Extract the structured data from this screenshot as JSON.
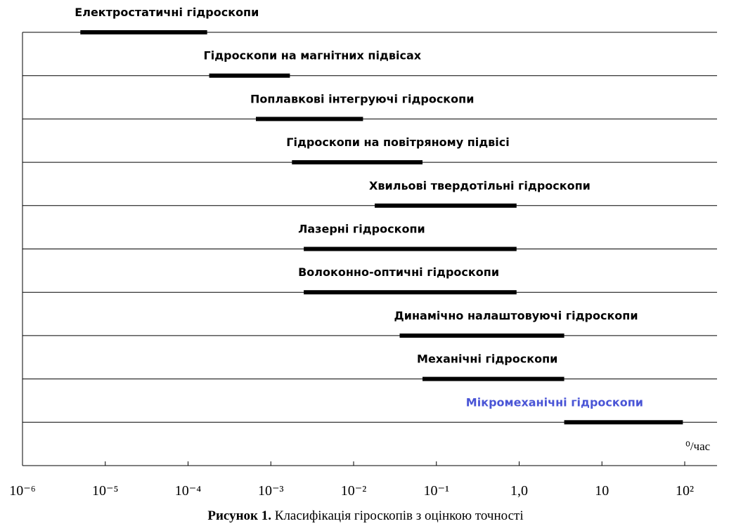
{
  "chart_data": {
    "type": "range_bar",
    "series": [
      {
        "name": "Електростатичні гідроскопи",
        "color": "#000000",
        "values": [
          5e-06,
          0.00017
        ]
      },
      {
        "name": "Гідроскопи на магнітних підвісах",
        "color": "#000000",
        "values": [
          0.00018,
          0.0017
        ]
      },
      {
        "name": "Поплавкові інтегруючі гідроскопи",
        "color": "#000000",
        "values": [
          0.00066,
          0.013
        ]
      },
      {
        "name": "Гідроскопи на повітряному підвісі",
        "color": "#000000",
        "values": [
          0.0018,
          0.068
        ]
      },
      {
        "name": "Хвильові твердотільні гідроскопи",
        "color": "#000000",
        "values": [
          0.018,
          0.93
        ]
      },
      {
        "name": "Лазерні гідроскопи",
        "color": "#000000",
        "values": [
          0.0025,
          0.93
        ]
      },
      {
        "name": "Волоконно-оптичні гідроскопи",
        "color": "#000000",
        "values": [
          0.0025,
          0.93
        ]
      },
      {
        "name": "Динамічно налаштовуючі гідроскопи",
        "color": "#000000",
        "values": [
          0.036,
          3.5
        ]
      },
      {
        "name": "Механічні гідроскопи",
        "color": "#000000",
        "values": [
          0.068,
          3.5
        ]
      },
      {
        "name": "Мікромеханічні гідроскопи",
        "color": "#4a55d6",
        "values": [
          3.5,
          95
        ]
      }
    ],
    "xscale": "log",
    "xlim": [
      1e-06,
      100
    ],
    "xticks": [
      {
        "value": 1e-06,
        "label": "10⁻⁶"
      },
      {
        "value": 1e-05,
        "label": "10⁻⁵"
      },
      {
        "value": 0.0001,
        "label": "10⁻⁴"
      },
      {
        "value": 0.001,
        "label": "10⁻³"
      },
      {
        "value": 0.01,
        "label": "10⁻²"
      },
      {
        "value": 0.1,
        "label": "10⁻¹"
      },
      {
        "value": 1,
        "label": "1,0"
      },
      10,
      {
        "value": 100,
        "label": "10²"
      }
    ],
    "xlabel": "⁰/час",
    "caption_label": "Рисунок 1.",
    "caption_text": "Класифікація гіроскопів з оцінкою точності"
  }
}
